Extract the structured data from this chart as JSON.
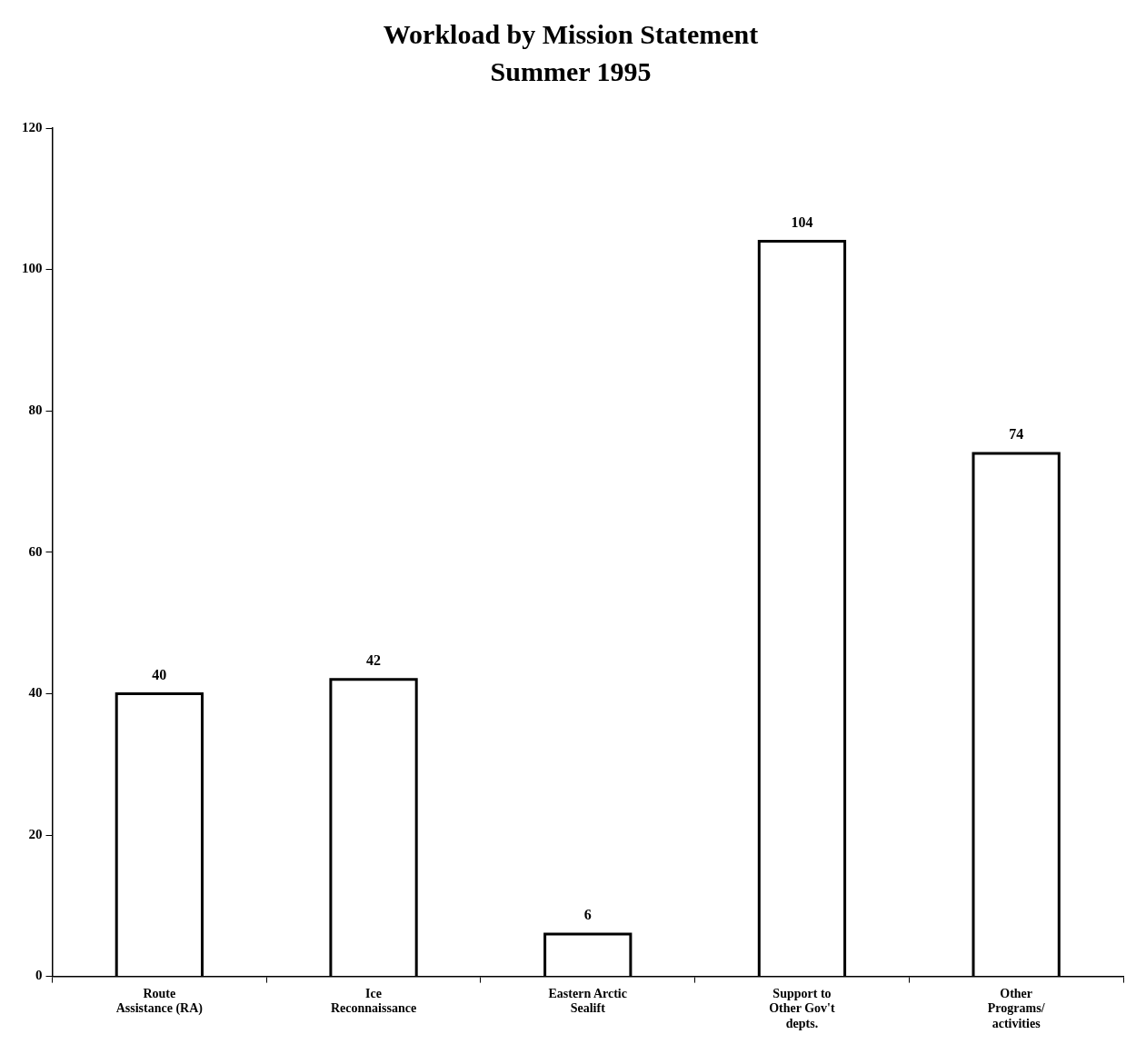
{
  "chart_data": {
    "type": "bar",
    "title": "Workload by Mission Statement",
    "subtitle": "Summer 1995",
    "categories": [
      "Route\nAssistance (RA)",
      "Ice\nReconnaissance",
      "Eastern Arctic\nSealift",
      "Support to\nOther Gov't\ndepts.",
      "Other\nPrograms/\nactivities"
    ],
    "values": [
      40,
      42,
      6,
      104,
      74
    ],
    "color": "#ffffff",
    "ylim": [
      0,
      120
    ],
    "yticks": [
      0,
      20,
      40,
      60,
      80,
      100,
      120
    ],
    "grid": false,
    "legend": false,
    "data_labels": true
  }
}
